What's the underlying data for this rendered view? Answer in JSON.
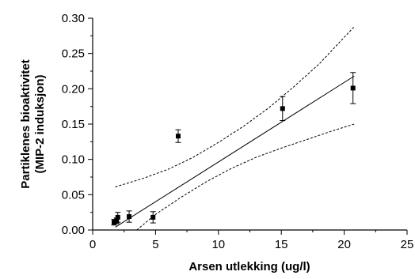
{
  "chart_data": {
    "type": "scatter",
    "title": "",
    "xlabel": "Arsen utlekking (ug/l)",
    "ylabel_line1": "Partiklenes bioaktivitet",
    "ylabel_line2": "(MIP-2 induksjon)",
    "xlim": [
      0,
      25
    ],
    "ylim": [
      0,
      0.3
    ],
    "x_ticks": [
      "0",
      "5",
      "10",
      "15",
      "20",
      "25"
    ],
    "y_ticks": [
      "0.00",
      "0.05",
      "0.10",
      "0.15",
      "0.20",
      "0.25",
      "0.30"
    ],
    "grid": false,
    "series": [
      {
        "points": [
          {
            "x": 1.7,
            "y": 0.011,
            "err": 0.004
          },
          {
            "x": 1.9,
            "y": 0.013,
            "err": 0.004
          },
          {
            "x": 2.0,
            "y": 0.018,
            "err": 0.007
          },
          {
            "x": 2.9,
            "y": 0.019,
            "err": 0.008
          },
          {
            "x": 4.8,
            "y": 0.018,
            "err": 0.008
          },
          {
            "x": 6.8,
            "y": 0.133,
            "err": 0.009
          },
          {
            "x": 15.1,
            "y": 0.172,
            "err": 0.017
          },
          {
            "x": 20.7,
            "y": 0.201,
            "err": 0.022
          }
        ]
      }
    ],
    "regression_line": {
      "x": [
        1.8,
        20.8
      ],
      "y": [
        0.004,
        0.218
      ]
    },
    "confidence_upper": {
      "x": [
        1.8,
        4,
        6,
        8,
        10,
        12,
        14,
        16,
        18,
        20.8
      ],
      "y": [
        0.061,
        0.073,
        0.086,
        0.103,
        0.124,
        0.147,
        0.173,
        0.203,
        0.235,
        0.288
      ]
    },
    "confidence_lower": {
      "x": [
        3.5,
        5,
        7,
        9,
        11,
        13,
        15,
        17,
        19,
        20.8
      ],
      "y": [
        0.0,
        0.022,
        0.046,
        0.068,
        0.087,
        0.103,
        0.116,
        0.128,
        0.14,
        0.15
      ]
    }
  }
}
